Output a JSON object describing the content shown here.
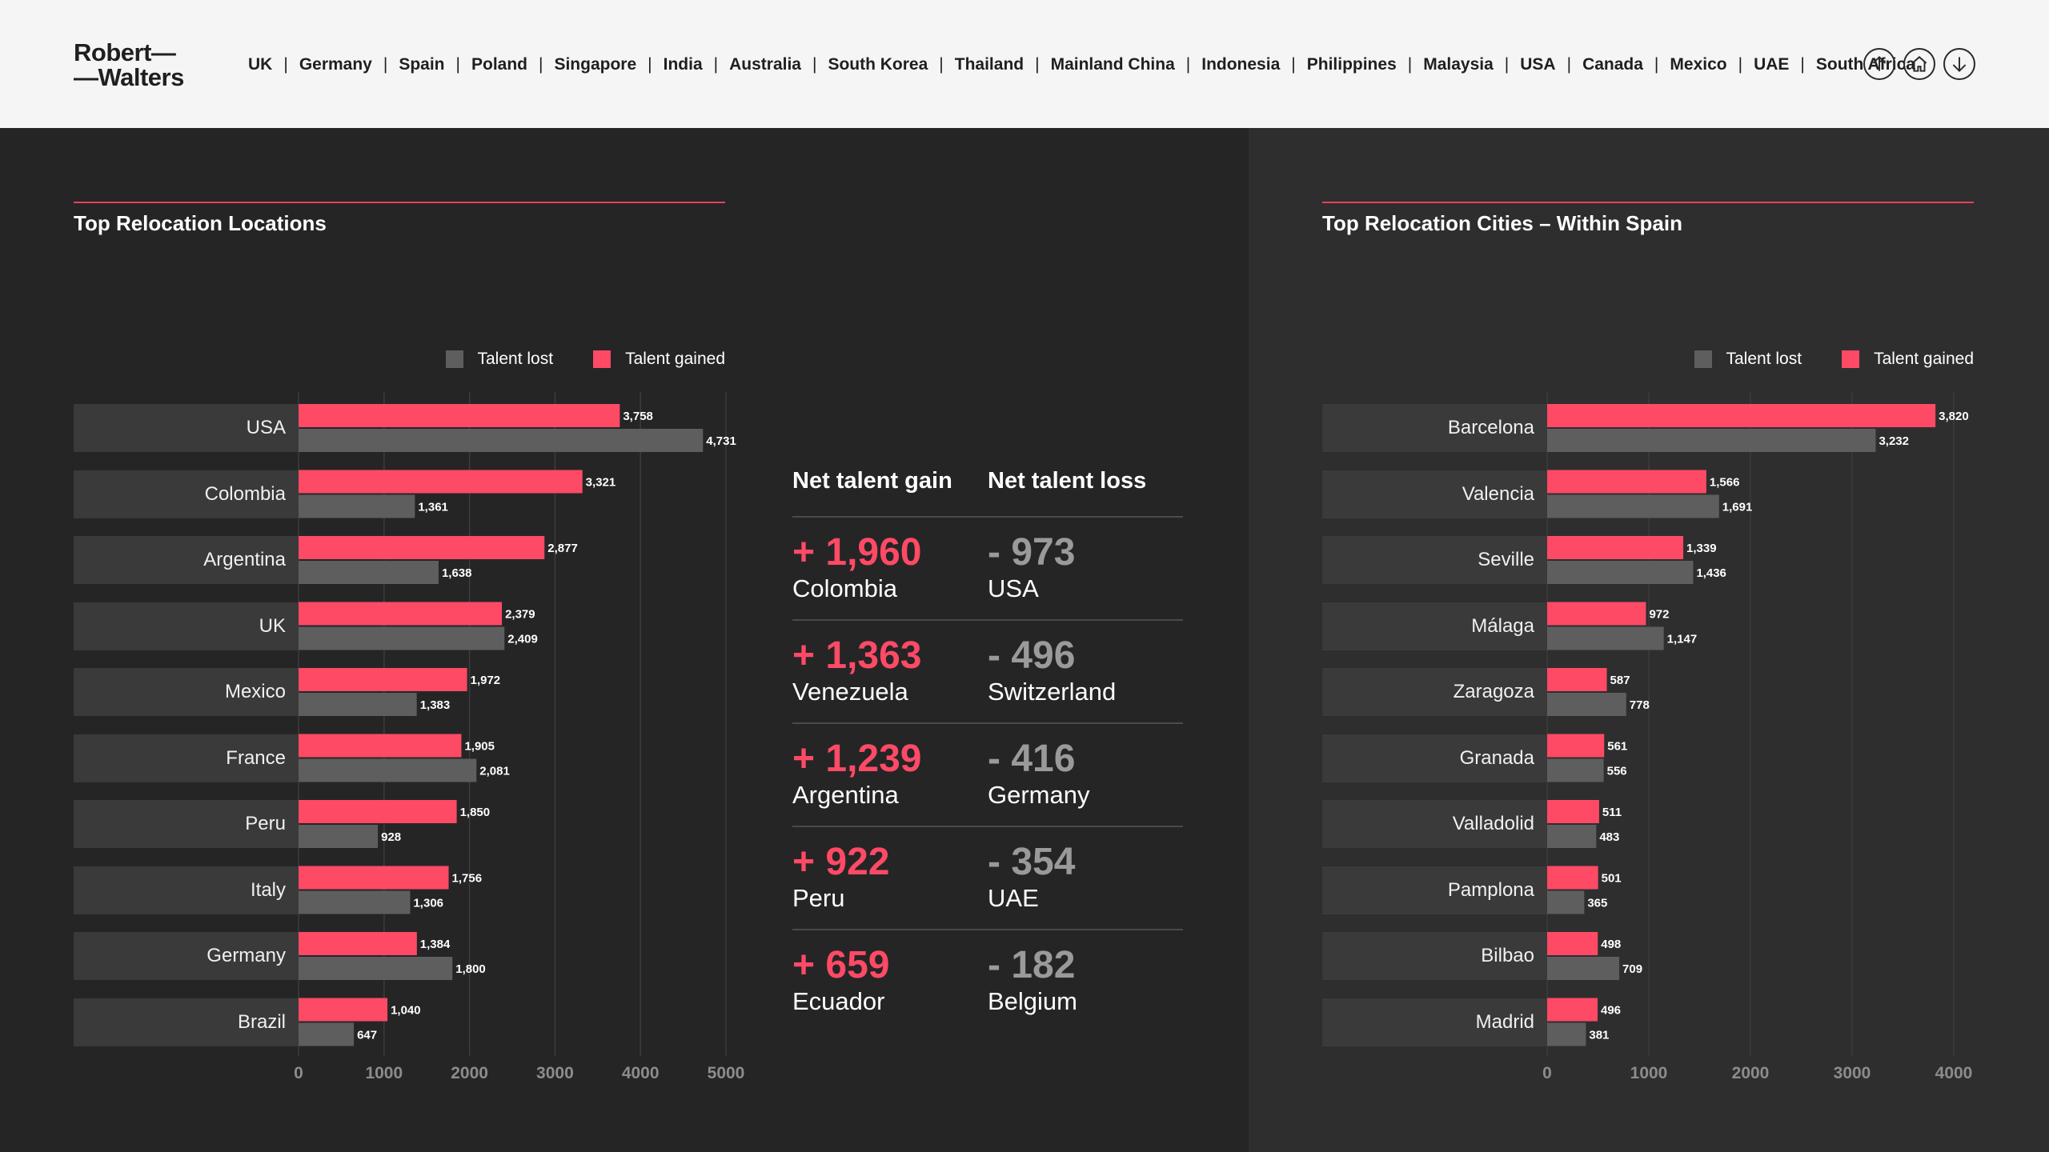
{
  "header": {
    "logo_line1": "Robert—",
    "logo_line2": "—Walters",
    "nav": [
      "UK",
      "Germany",
      "Spain",
      "Poland",
      "Singapore",
      "India",
      "Australia",
      "South Korea",
      "Thailand",
      "Mainland China",
      "Indonesia",
      "Philippines",
      "Malaysia",
      "USA",
      "Canada",
      "Mexico",
      "UAE",
      "South Africa"
    ],
    "buttons": [
      "arrow-up-icon",
      "home-icon",
      "arrow-down-icon"
    ]
  },
  "colors": {
    "lost": "#5e5e5f",
    "gained": "#ff4a66",
    "accent": "#e8405a"
  },
  "legend": {
    "lost": "Talent lost",
    "gained": "Talent gained"
  },
  "net": {
    "gain_header": "Net talent gain",
    "loss_header": "Net talent loss",
    "rows": [
      {
        "gain_value": "+ 1,960",
        "gain_name": "Colombia",
        "loss_value": "- 973",
        "loss_name": "USA"
      },
      {
        "gain_value": "+ 1,363",
        "gain_name": "Venezuela",
        "loss_value": "- 496",
        "loss_name": "Switzerland"
      },
      {
        "gain_value": "+ 1,239",
        "gain_name": "Argentina",
        "loss_value": "- 416",
        "loss_name": "Germany"
      },
      {
        "gain_value": "+ 922",
        "gain_name": "Peru",
        "loss_value": "- 354",
        "loss_name": "UAE"
      },
      {
        "gain_value": "+ 659",
        "gain_name": "Ecuador",
        "loss_value": "- 182",
        "loss_name": "Belgium"
      }
    ]
  },
  "chart_data": [
    {
      "type": "bar",
      "orientation": "horizontal",
      "title": "Top Relocation Locations",
      "categories": [
        "USA",
        "Colombia",
        "Argentina",
        "UK",
        "Mexico",
        "France",
        "Peru",
        "Italy",
        "Germany",
        "Brazil"
      ],
      "series": [
        {
          "name": "Talent gained",
          "values": [
            3758,
            3321,
            2877,
            2379,
            1972,
            1905,
            1850,
            1756,
            1384,
            1040
          ],
          "labels": [
            "3,758",
            "3,321",
            "2,877",
            "2,379",
            "1,972",
            "1,905",
            "1,850",
            "1,756",
            "1,384",
            "1,040"
          ]
        },
        {
          "name": "Talent lost",
          "values": [
            4731,
            1361,
            1638,
            2409,
            1383,
            2081,
            928,
            1306,
            1800,
            647
          ],
          "labels": [
            "4,731",
            "1,361",
            "1,638",
            "2,409",
            "1,383",
            "2,081",
            "928",
            "1,306",
            "1,800",
            "647"
          ]
        }
      ],
      "xlim": [
        0,
        5000
      ],
      "xticks": [
        0,
        1000,
        2000,
        3000,
        4000,
        5000
      ],
      "grid": true,
      "legend_position": "top-right"
    },
    {
      "type": "bar",
      "orientation": "horizontal",
      "title": "Top Relocation Cities – Within Spain",
      "categories": [
        "Barcelona",
        "Valencia",
        "Seville",
        "Málaga",
        "Zaragoza",
        "Granada",
        "Valladolid",
        "Pamplona",
        "Bilbao",
        "Madrid"
      ],
      "series": [
        {
          "name": "Talent gained",
          "values": [
            3820,
            1566,
            1339,
            972,
            587,
            561,
            511,
            501,
            498,
            496
          ],
          "labels": [
            "3,820",
            "1,566",
            "1,339",
            "972",
            "587",
            "561",
            "511",
            "501",
            "498",
            "496"
          ]
        },
        {
          "name": "Talent lost",
          "values": [
            3232,
            1691,
            1436,
            1147,
            778,
            556,
            483,
            365,
            709,
            381
          ],
          "labels": [
            "3,232",
            "1,691",
            "1,436",
            "1,147",
            "778",
            "556",
            "483",
            "365",
            "709",
            "381"
          ]
        }
      ],
      "xlim": [
        0,
        4000
      ],
      "xticks": [
        0,
        1000,
        2000,
        3000,
        4000
      ],
      "grid": true,
      "legend_position": "top-right"
    }
  ]
}
